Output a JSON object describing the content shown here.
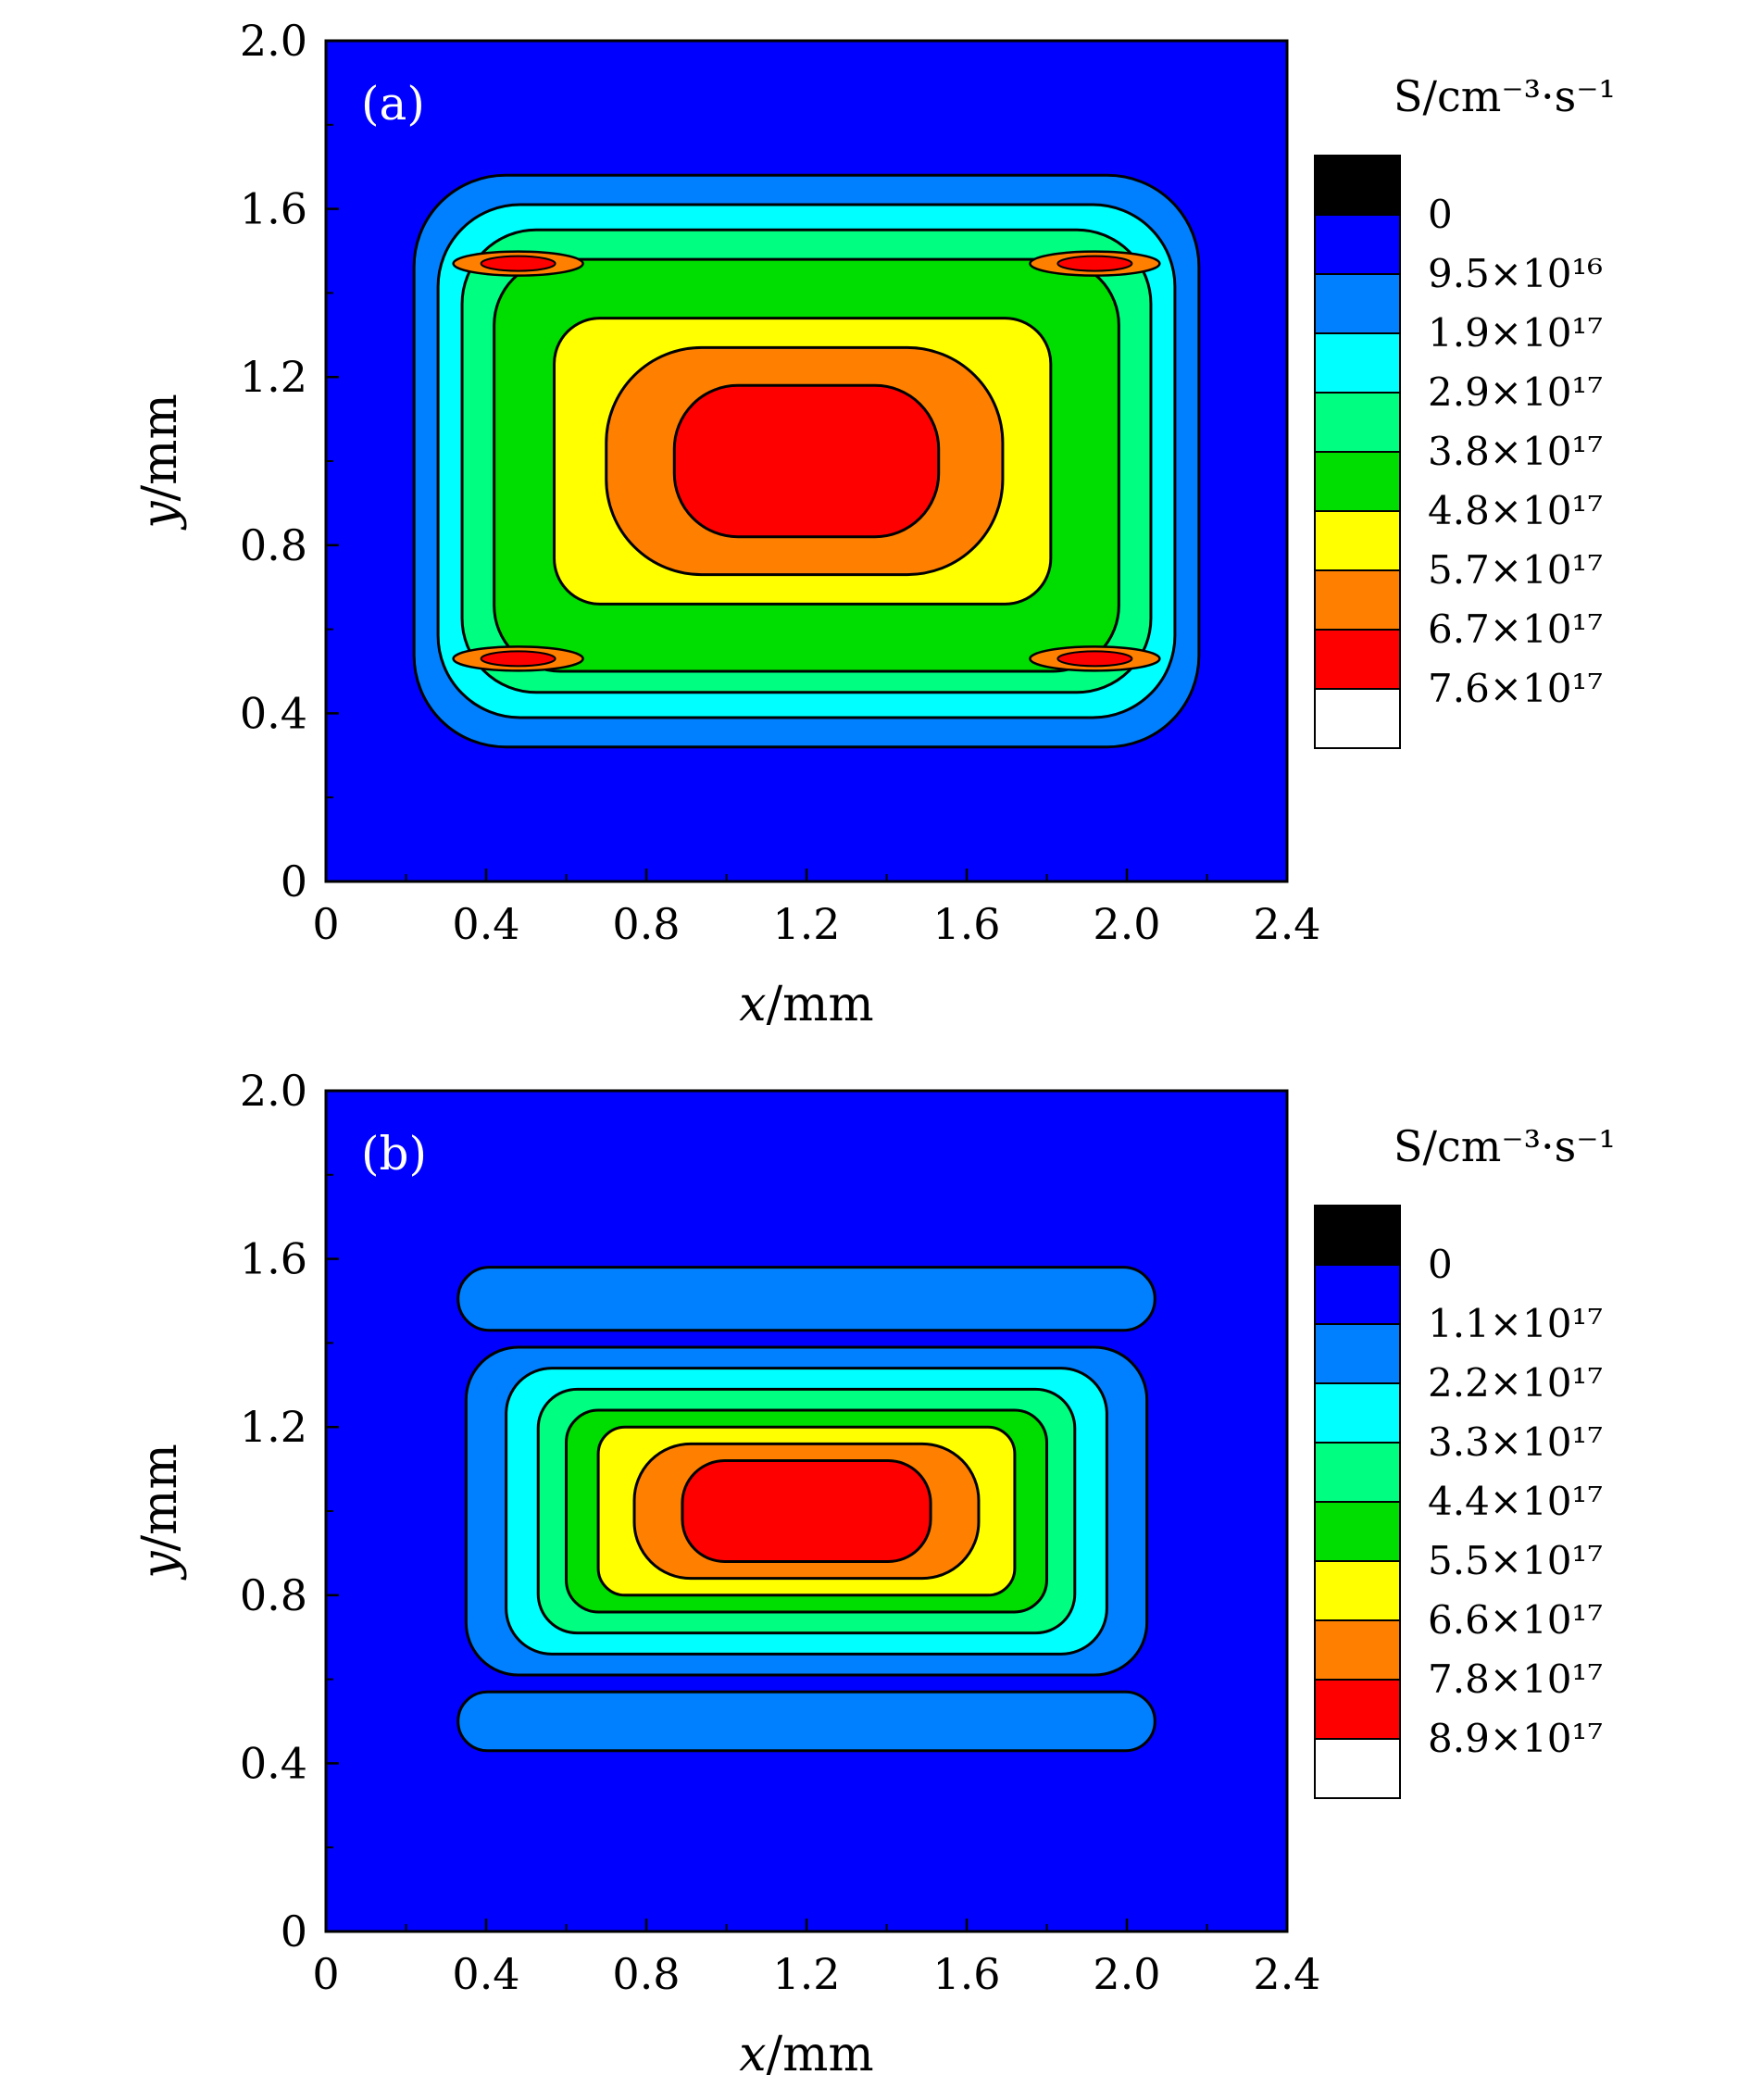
{
  "chart_data": [
    {
      "type": "heatmap",
      "panel_label": "(a)",
      "xlabel_var": "x",
      "xlabel_unit": "/mm",
      "ylabel_var": "y",
      "ylabel_unit": "/mm",
      "xlim": [
        0,
        2.4
      ],
      "ylim": [
        0,
        2.0
      ],
      "xticks": [
        "0",
        "0.4",
        "0.8",
        "1.2",
        "1.6",
        "2.0",
        "2.4"
      ],
      "yticks": [
        "0",
        "0.4",
        "0.8",
        "1.2",
        "1.6",
        "2.0"
      ],
      "colorbar_title": "S/cm⁻³·s⁻¹",
      "colorbar_labels": [
        "0",
        "9.5×10¹⁶",
        "1.9×10¹⁷",
        "2.9×10¹⁷",
        "3.8×10¹⁷",
        "4.8×10¹⁷",
        "5.7×10¹⁷",
        "6.7×10¹⁷",
        "7.6×10¹⁷"
      ],
      "colorbar_colors": [
        "#000000",
        "#0000ff",
        "#0080ff",
        "#00ffff",
        "#00ff80",
        "#00dd00",
        "#ffff00",
        "#ff8000",
        "#ff0000",
        "#ffffff"
      ],
      "contours": [
        {
          "level": 1,
          "color": "#0080ff",
          "x": [
            0.22,
            2.18
          ],
          "y": [
            0.32,
            1.68
          ]
        },
        {
          "level": 2,
          "color": "#00ffff",
          "x": [
            0.28,
            2.12
          ],
          "y": [
            0.39,
            1.61
          ]
        },
        {
          "level": 3,
          "color": "#00ff80",
          "x": [
            0.34,
            2.06
          ],
          "y": [
            0.45,
            1.55
          ]
        },
        {
          "level": 4,
          "color": "#00dd00",
          "x": [
            0.42,
            1.98
          ],
          "y": [
            0.5,
            1.48
          ]
        },
        {
          "level": 5,
          "color": "#ffff00",
          "x": [
            0.57,
            1.81
          ],
          "y": [
            0.66,
            1.34
          ]
        },
        {
          "level": 6,
          "color": "#ff8000",
          "x": [
            0.7,
            1.69
          ],
          "y": [
            0.73,
            1.27
          ]
        },
        {
          "level": 7,
          "color": "#ff0000",
          "x": [
            0.87,
            1.53
          ],
          "y": [
            0.82,
            1.18
          ]
        }
      ],
      "hotspots": [
        {
          "x": 0.48,
          "y": 1.47
        },
        {
          "x": 1.92,
          "y": 1.47
        },
        {
          "x": 0.48,
          "y": 0.53
        },
        {
          "x": 1.92,
          "y": 0.53
        }
      ]
    },
    {
      "type": "heatmap",
      "panel_label": "(b)",
      "xlabel_var": "x",
      "xlabel_unit": "/mm",
      "ylabel_var": "y",
      "ylabel_unit": "/mm",
      "xlim": [
        0,
        2.4
      ],
      "ylim": [
        0,
        2.0
      ],
      "xticks": [
        "0",
        "0.4",
        "0.8",
        "1.2",
        "1.6",
        "2.0",
        "2.4"
      ],
      "yticks": [
        "0",
        "0.4",
        "0.8",
        "1.2",
        "1.6",
        "2.0"
      ],
      "colorbar_title": "S/cm⁻³·s⁻¹",
      "colorbar_labels": [
        "0",
        "1.1×10¹⁷",
        "2.2×10¹⁷",
        "3.3×10¹⁷",
        "4.4×10¹⁷",
        "5.5×10¹⁷",
        "6.6×10¹⁷",
        "7.8×10¹⁷",
        "8.9×10¹⁷"
      ],
      "colorbar_colors": [
        "#000000",
        "#0000ff",
        "#0080ff",
        "#00ffff",
        "#00ff80",
        "#00dd00",
        "#ffff00",
        "#ff8000",
        "#ff0000",
        "#ffffff"
      ],
      "bands": [
        {
          "color": "#0080ff",
          "x": [
            0.33,
            2.07
          ],
          "y": [
            1.43,
            1.58
          ]
        },
        {
          "color": "#0080ff",
          "x": [
            0.33,
            2.07
          ],
          "y": [
            0.43,
            0.57
          ]
        }
      ],
      "contours": [
        {
          "level": 1,
          "color": "#0080ff",
          "x": [
            0.35,
            2.05
          ],
          "y": [
            0.61,
            1.39
          ]
        },
        {
          "level": 2,
          "color": "#00ffff",
          "x": [
            0.45,
            1.95
          ],
          "y": [
            0.66,
            1.34
          ]
        },
        {
          "level": 3,
          "color": "#00ff80",
          "x": [
            0.53,
            1.87
          ],
          "y": [
            0.71,
            1.29
          ]
        },
        {
          "level": 4,
          "color": "#00dd00",
          "x": [
            0.6,
            1.8
          ],
          "y": [
            0.76,
            1.24
          ]
        },
        {
          "level": 5,
          "color": "#ffff00",
          "x": [
            0.68,
            1.72
          ],
          "y": [
            0.8,
            1.2
          ]
        },
        {
          "level": 6,
          "color": "#ff8000",
          "x": [
            0.77,
            1.63
          ],
          "y": [
            0.84,
            1.16
          ]
        },
        {
          "level": 7,
          "color": "#ff0000",
          "x": [
            0.89,
            1.51
          ],
          "y": [
            0.88,
            1.12
          ]
        }
      ]
    }
  ]
}
